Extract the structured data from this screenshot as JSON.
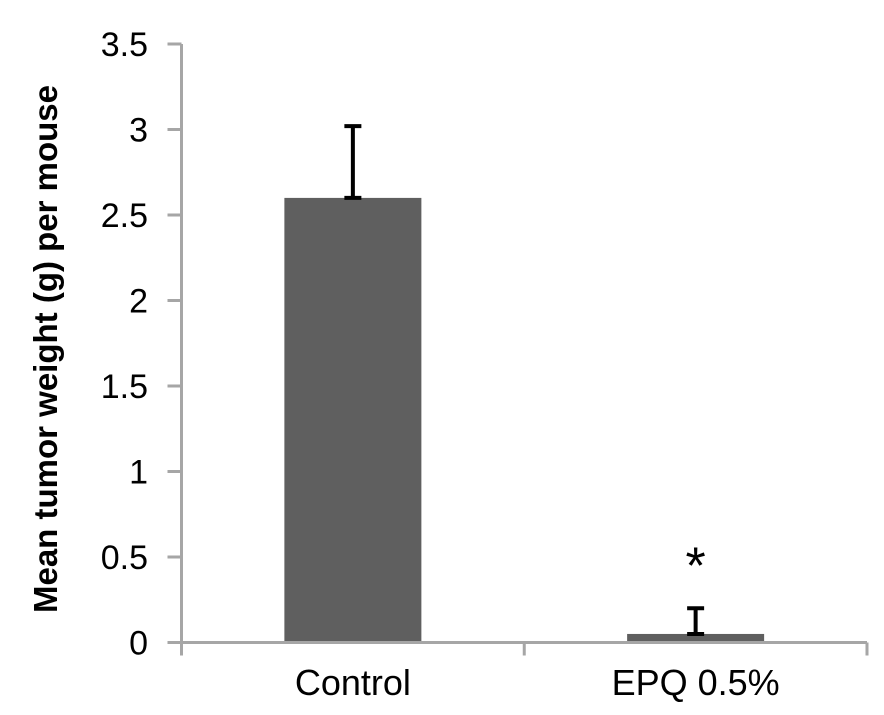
{
  "chart_data": {
    "type": "bar",
    "title": "",
    "categories": [
      "Control",
      "EPQ 0.5%"
    ],
    "values": [
      2.6,
      0.05
    ],
    "errors_plus": [
      0.42,
      0.15
    ],
    "significance_markers": [
      "",
      "*"
    ],
    "xlabel": "",
    "ylabel": "Mean tumor weight (g) per mouse",
    "ylim": [
      0,
      3.5
    ],
    "ytick_step": 0.5,
    "yticks": [
      3.5,
      3,
      2.5,
      2,
      1.5,
      1,
      0.5,
      0
    ],
    "grid": false,
    "legend": null,
    "bar_color": "#5F5F5F",
    "axis_color": "#A6A6A6",
    "error_bar_color": "#000000",
    "text_color": "#000000",
    "background_color": "#FFFFFF"
  }
}
